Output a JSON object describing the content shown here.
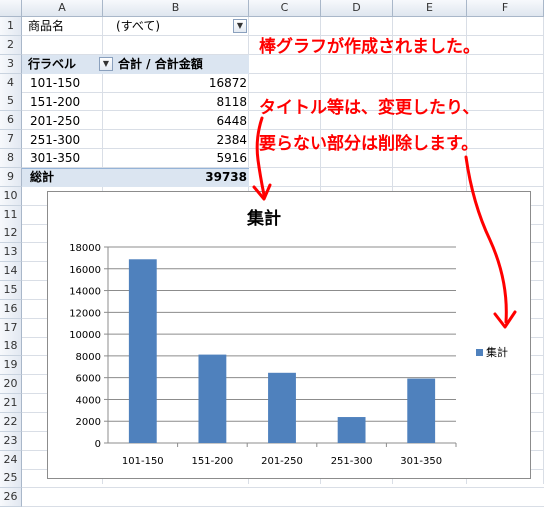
{
  "sheet": {
    "columns": [
      "A",
      "B",
      "C",
      "D",
      "E",
      "F"
    ],
    "rows": [
      "1",
      "2",
      "3",
      "4",
      "5",
      "6",
      "7",
      "8",
      "9",
      "10",
      "11",
      "12",
      "13",
      "14",
      "15",
      "16",
      "17",
      "18",
      "19",
      "20",
      "21",
      "22",
      "23",
      "24",
      "25",
      "26"
    ]
  },
  "pivot": {
    "filter_label": "商品名",
    "filter_value": "(すべて)",
    "row_label_header": "行ラベル",
    "value_header": "合計 / 合計金額",
    "items": [
      {
        "label": "101-150",
        "value": "16872"
      },
      {
        "label": "151-200",
        "value": "8118"
      },
      {
        "label": "201-250",
        "value": "6448"
      },
      {
        "label": "251-300",
        "value": "2384"
      },
      {
        "label": "301-350",
        "value": "5916"
      }
    ],
    "total_label": "総計",
    "total_value": "39738"
  },
  "annotations": {
    "note1": "棒グラフが作成されました。",
    "note2": "タイトル等は、変更したり、",
    "note3": "要らない部分は削除します。"
  },
  "colors": {
    "bar": "#4f81bd",
    "annotation": "#ff0000",
    "header_band": "#dbe5f1"
  },
  "chart_data": {
    "type": "bar",
    "title": "集計",
    "categories": [
      "101-150",
      "151-200",
      "201-250",
      "251-300",
      "301-350"
    ],
    "series": [
      {
        "name": "集計",
        "values": [
          16872,
          8118,
          6448,
          2384,
          5916
        ]
      }
    ],
    "ylim": [
      0,
      18000
    ],
    "yticks": [
      "0",
      "2000",
      "4000",
      "6000",
      "8000",
      "10000",
      "12000",
      "14000",
      "16000",
      "18000"
    ],
    "grid": true,
    "legend": "right"
  }
}
